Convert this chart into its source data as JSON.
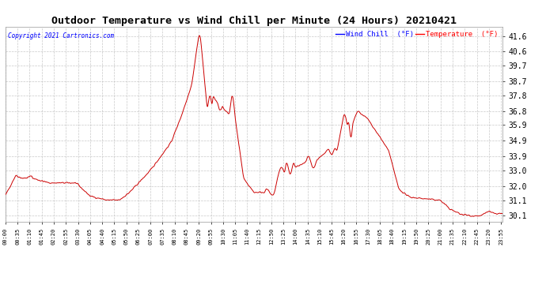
{
  "title": "Outdoor Temperature vs Wind Chill per Minute (24 Hours) 20210421",
  "copyright": "Copyright 2021 Cartronics.com",
  "legend_windchill": "Wind Chill  (°F)",
  "legend_temp": "Temperature  (°F)",
  "line_color": "#cc0000",
  "background_color": "#ffffff",
  "grid_color": "#bbbbbb",
  "title_fontsize": 10,
  "ylim_min": 29.7,
  "ylim_max": 42.2,
  "yticks": [
    30.1,
    31.1,
    32.0,
    33.0,
    33.9,
    34.9,
    35.9,
    36.8,
    37.8,
    38.7,
    39.7,
    40.6,
    41.6
  ],
  "num_points": 1440
}
